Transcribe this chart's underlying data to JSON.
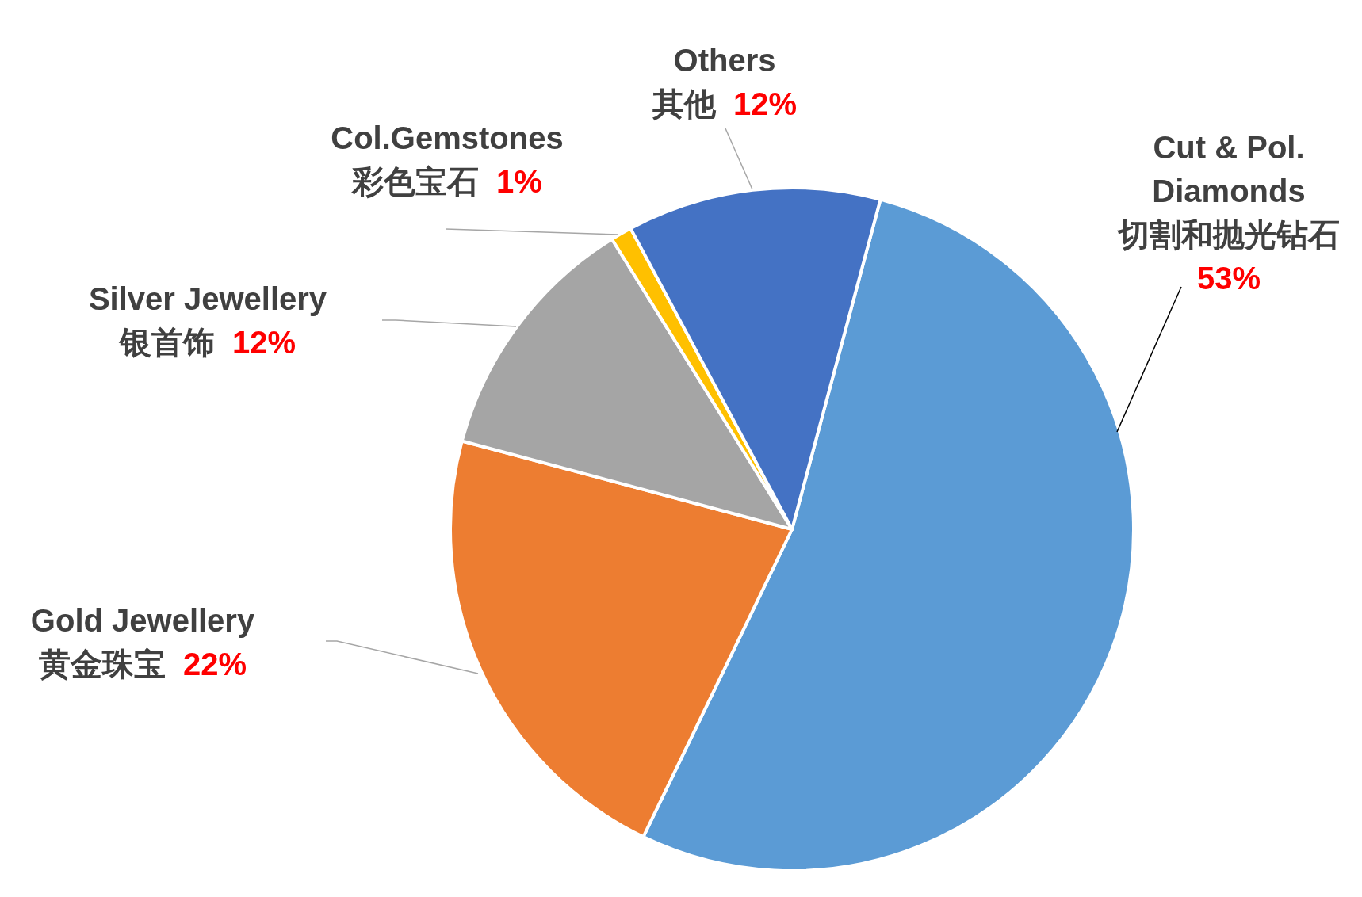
{
  "chart_data": {
    "type": "pie",
    "categories": [
      "Cut & Pol.\nDiamonds\n切割和抛光钻石",
      "Gold Jewellery\n黄金珠宝",
      "Silver Jewellery\n银首饰",
      "Col.Gemstones\n彩色宝石",
      "Others\n其他"
    ],
    "values": [
      53,
      22,
      12,
      1,
      12
    ],
    "value_labels": [
      "53%",
      "22%",
      "12%",
      "1%",
      "12%"
    ],
    "colors": [
      "#5b9bd5",
      "#ed7d31",
      "#a5a5a5",
      "#ffc000",
      "#4472c4"
    ]
  }
}
